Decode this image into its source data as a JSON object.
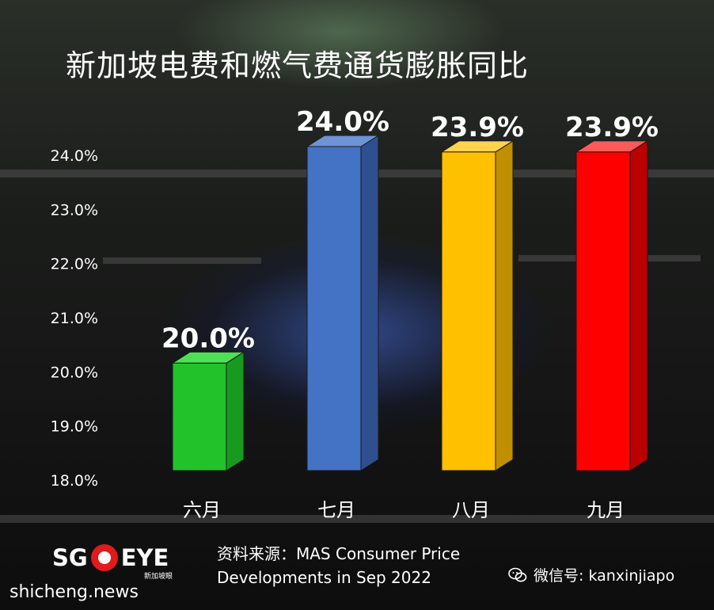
{
  "chart_data": {
    "type": "bar",
    "title": "新加坡电费和燃气费通货膨胀同比",
    "categories": [
      "六月",
      "七月",
      "八月",
      "九月"
    ],
    "values": [
      20.0,
      24.0,
      23.9,
      23.9
    ],
    "data_labels": [
      "20.0%",
      "24.0%",
      "23.9%",
      "23.9%"
    ],
    "ylim": [
      18.0,
      24.0
    ],
    "yticks": [
      "18.0%",
      "19.0%",
      "20.0%",
      "21.0%",
      "22.0%",
      "23.0%",
      "24.0%"
    ],
    "bar_style": "3d",
    "colors": [
      "#22c22a",
      "#4472c4",
      "#ffc000",
      "#ff0000"
    ],
    "side_colors": [
      "#179a1f",
      "#2f4f8f",
      "#c08f00",
      "#bb0000"
    ],
    "top_colors": [
      "#4de055",
      "#6e93d6",
      "#ffd34d",
      "#ff5a5a"
    ],
    "grid": false,
    "legend": "none"
  },
  "logo": {
    "left": "SG",
    "right": "EYE",
    "sub": "新加坡眼"
  },
  "source": {
    "line1": "资料来源：MAS Consumer Price",
    "line2": "Developments in Sep 2022"
  },
  "site": "shicheng.news",
  "wechat": {
    "label": "微信号: kanxinjiapo",
    "icon": "wechat-icon"
  }
}
